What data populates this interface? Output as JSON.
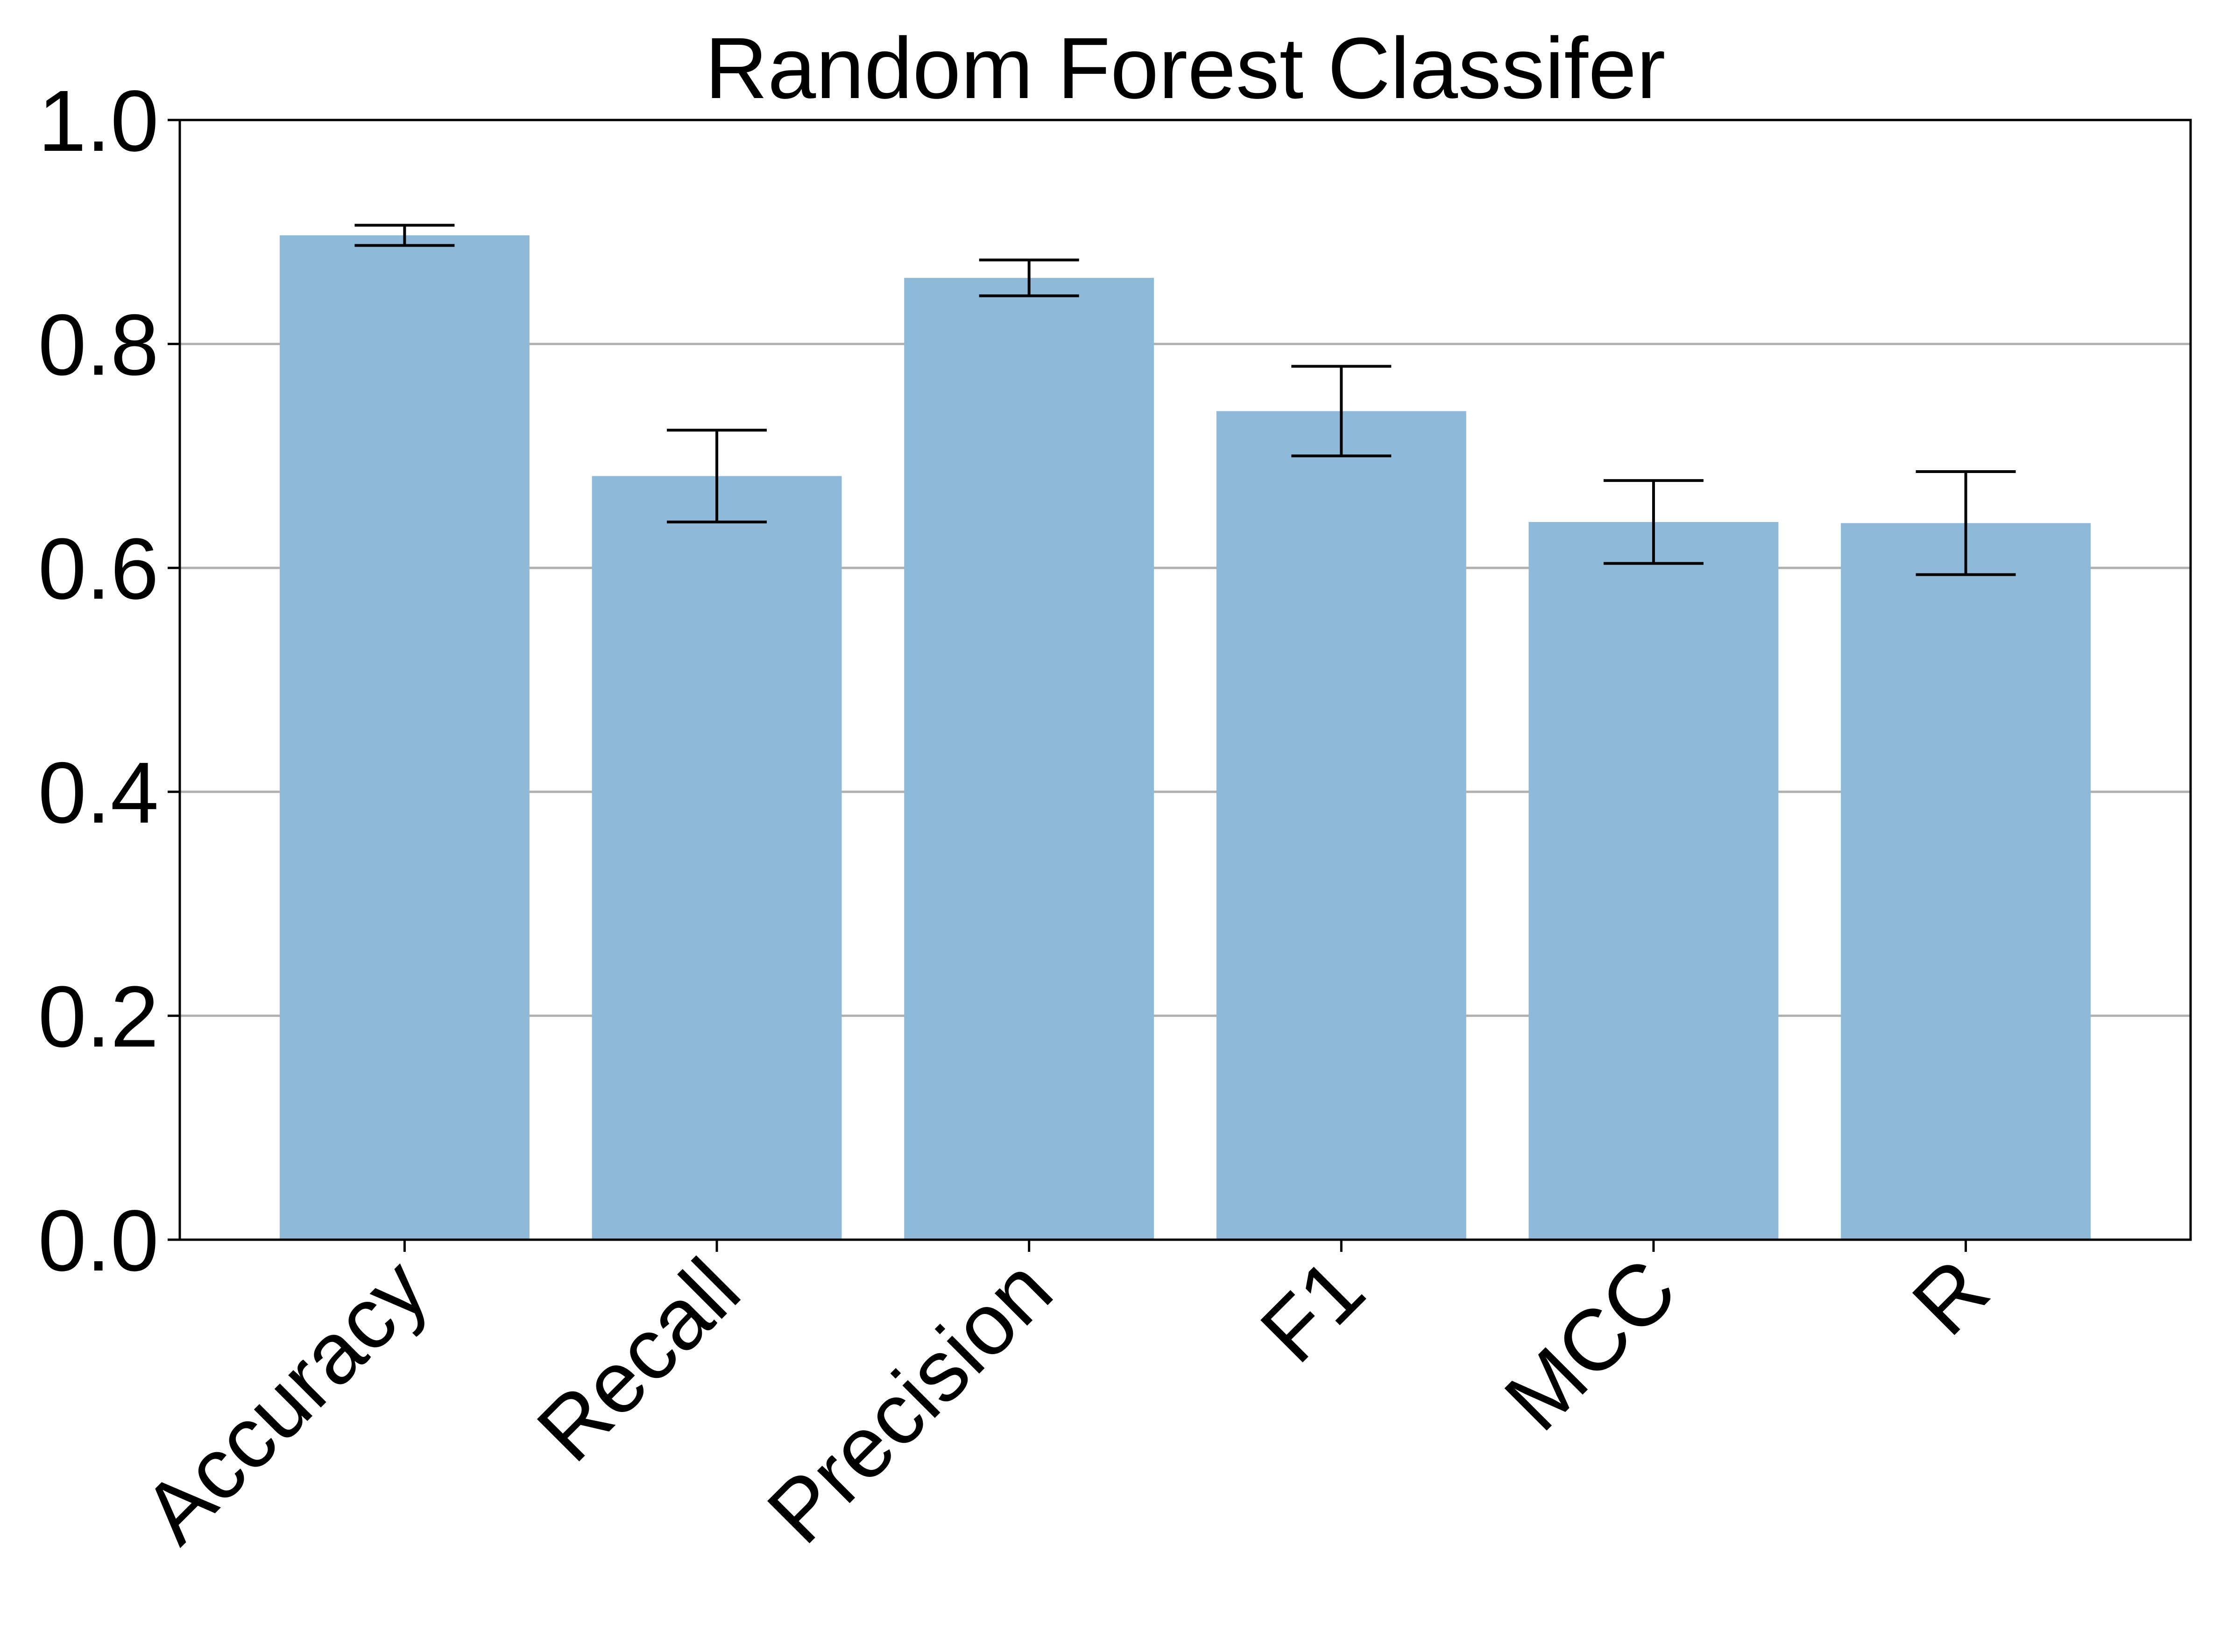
{
  "chart_data": {
    "type": "bar",
    "title": "Random Forest Classifer",
    "xlabel": "",
    "ylabel": "",
    "categories": [
      "Accuracy",
      "Recall",
      "Precision",
      "F1",
      "MCC",
      "R"
    ],
    "values": [
      0.897,
      0.682,
      0.859,
      0.74,
      0.641,
      0.64
    ],
    "errors": [
      0.009,
      0.041,
      0.016,
      0.04,
      0.037,
      0.046
    ],
    "ylim": [
      0.0,
      1.0
    ],
    "yticks": [
      "0.0",
      "0.2",
      "0.4",
      "0.6",
      "0.8",
      "1.0"
    ],
    "ytick_values": [
      0.0,
      0.2,
      0.4,
      0.6,
      0.8,
      1.0
    ],
    "grid": "y-major",
    "bar_color": "#8fb9d9",
    "errorbar_color": "#000000",
    "gridline_color": "#b0b0b0",
    "x_tick_rotation": "45-degrees"
  }
}
